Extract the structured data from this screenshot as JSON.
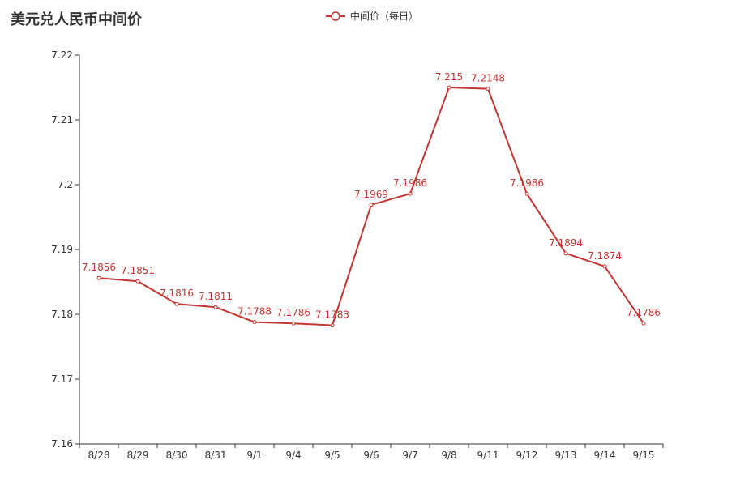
{
  "chart_data": {
    "type": "line",
    "title": "美元兑人民币中间价",
    "legend": "中间价（每日）",
    "legend_position": "top-center",
    "categories": [
      "8/28",
      "8/29",
      "8/30",
      "8/31",
      "9/1",
      "9/4",
      "9/5",
      "9/6",
      "9/7",
      "9/8",
      "9/11",
      "9/12",
      "9/13",
      "9/14",
      "9/15"
    ],
    "series": [
      {
        "name": "中间价（每日）",
        "values": [
          7.1856,
          7.1851,
          7.1816,
          7.1811,
          7.1788,
          7.1786,
          7.1783,
          7.1969,
          7.1986,
          7.215,
          7.2148,
          7.1986,
          7.1894,
          7.1874,
          7.1786
        ],
        "labels": [
          "7.1856",
          "7.1851",
          "7.1816",
          "7.1811",
          "7.1788",
          "7.1786",
          "7.1783",
          "7.1969",
          "7.1986",
          "7.215",
          "7.2148",
          "7.1986",
          "7.1894",
          "7.1874",
          "7.1786"
        ],
        "color": "#c23531"
      }
    ],
    "ylim": [
      7.16,
      7.22
    ],
    "yticks": [
      "7.16",
      "7.17",
      "7.18",
      "7.19",
      "7.2",
      "7.21",
      "7.22"
    ],
    "grid": false
  }
}
